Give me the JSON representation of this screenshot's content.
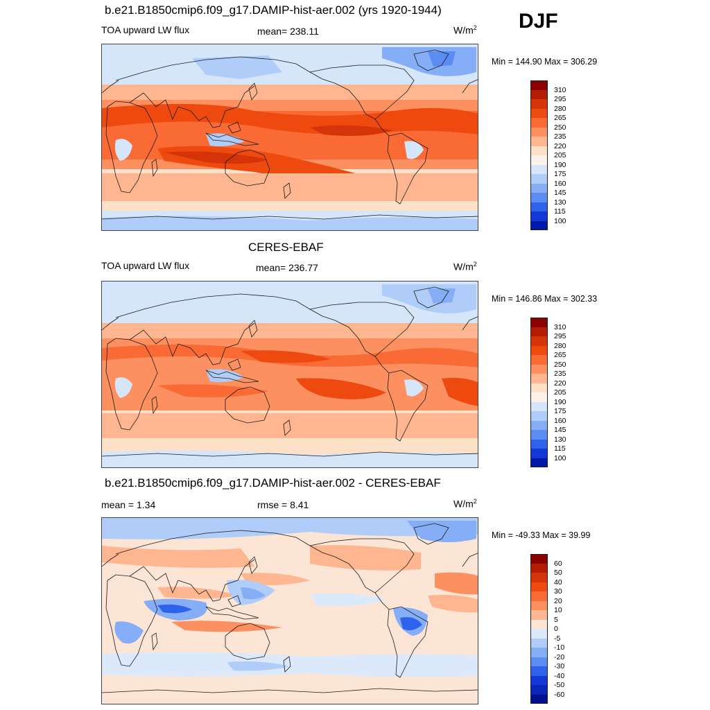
{
  "season": "DJF",
  "panels": [
    {
      "title": "b.e21.B1850cmip6.f09_g17.DAMIP-hist-aer.002 (yrs 1920-1944)",
      "variable": "TOA upward LW flux",
      "stat_left": "",
      "stat_mid": "mean= 238.11",
      "units": "W/m",
      "units_sup": "2",
      "minmax": "Min = 144.90 Max = 306.29",
      "field": "model"
    },
    {
      "title": "CERES-EBAF",
      "variable": "TOA upward LW flux",
      "stat_left": "",
      "stat_mid": "mean= 236.77",
      "units": "W/m",
      "units_sup": "2",
      "minmax": "Min = 146.86 Max = 302.33",
      "field": "obs"
    },
    {
      "title": "b.e21.B1850cmip6.f09_g17.DAMIP-hist-aer.002 - CERES-EBAF",
      "variable": "",
      "stat_left": "mean =   1.34",
      "stat_mid": "rmse =   8.41",
      "units": "W/m",
      "units_sup": "2",
      "minmax": "Min = -49.33 Max =  39.99",
      "field": "diff"
    }
  ],
  "colorbar_abs": {
    "labels": [
      "310",
      "295",
      "280",
      "265",
      "250",
      "235",
      "220",
      "205",
      "190",
      "175",
      "160",
      "145",
      "130",
      "115",
      "100"
    ],
    "colors": [
      "#8b0000",
      "#b41c04",
      "#d43408",
      "#ee4a10",
      "#fa6a34",
      "#fc9060",
      "#fdb690",
      "#fde0c8",
      "#fdf2ea",
      "#d5e6fb",
      "#b0cdf9",
      "#86aef6",
      "#5a8cf1",
      "#2e62ea",
      "#1438d6",
      "#0019aa"
    ]
  },
  "colorbar_diff": {
    "labels": [
      "60",
      "50",
      "40",
      "30",
      "20",
      "10",
      "5",
      "0",
      "-5",
      "-10",
      "-20",
      "-30",
      "-40",
      "-50",
      "-60"
    ],
    "colors": [
      "#8b0000",
      "#b41c04",
      "#d43408",
      "#ee4a10",
      "#fa6a34",
      "#fc9060",
      "#fdb690",
      "#fde5d6",
      "#dbe9fb",
      "#b0cdf9",
      "#86aef6",
      "#5a8cf1",
      "#2e62ea",
      "#1438d6",
      "#0a26b8",
      "#00118e"
    ]
  },
  "chart_data": [
    {
      "type": "heatmap",
      "title": "b.e21.B1850cmip6.f09_g17.DAMIP-hist-aer.002 (yrs 1920-1944)",
      "subtitle": "TOA upward LW flux",
      "season": "DJF",
      "units": "W/m2",
      "mean": 238.11,
      "min": 144.9,
      "max": 306.29,
      "levels": [
        100,
        115,
        130,
        145,
        160,
        175,
        190,
        205,
        220,
        235,
        250,
        265,
        280,
        295,
        310
      ]
    },
    {
      "type": "heatmap",
      "title": "CERES-EBAF",
      "subtitle": "TOA upward LW flux",
      "season": "DJF",
      "units": "W/m2",
      "mean": 236.77,
      "min": 146.86,
      "max": 302.33,
      "levels": [
        100,
        115,
        130,
        145,
        160,
        175,
        190,
        205,
        220,
        235,
        250,
        265,
        280,
        295,
        310
      ]
    },
    {
      "type": "heatmap",
      "title": "b.e21.B1850cmip6.f09_g17.DAMIP-hist-aer.002 - CERES-EBAF",
      "season": "DJF",
      "units": "W/m2",
      "mean": 1.34,
      "rmse": 8.41,
      "min": -49.33,
      "max": 39.99,
      "levels": [
        -60,
        -50,
        -40,
        -30,
        -20,
        -10,
        -5,
        0,
        5,
        10,
        20,
        30,
        40,
        50,
        60
      ]
    }
  ]
}
